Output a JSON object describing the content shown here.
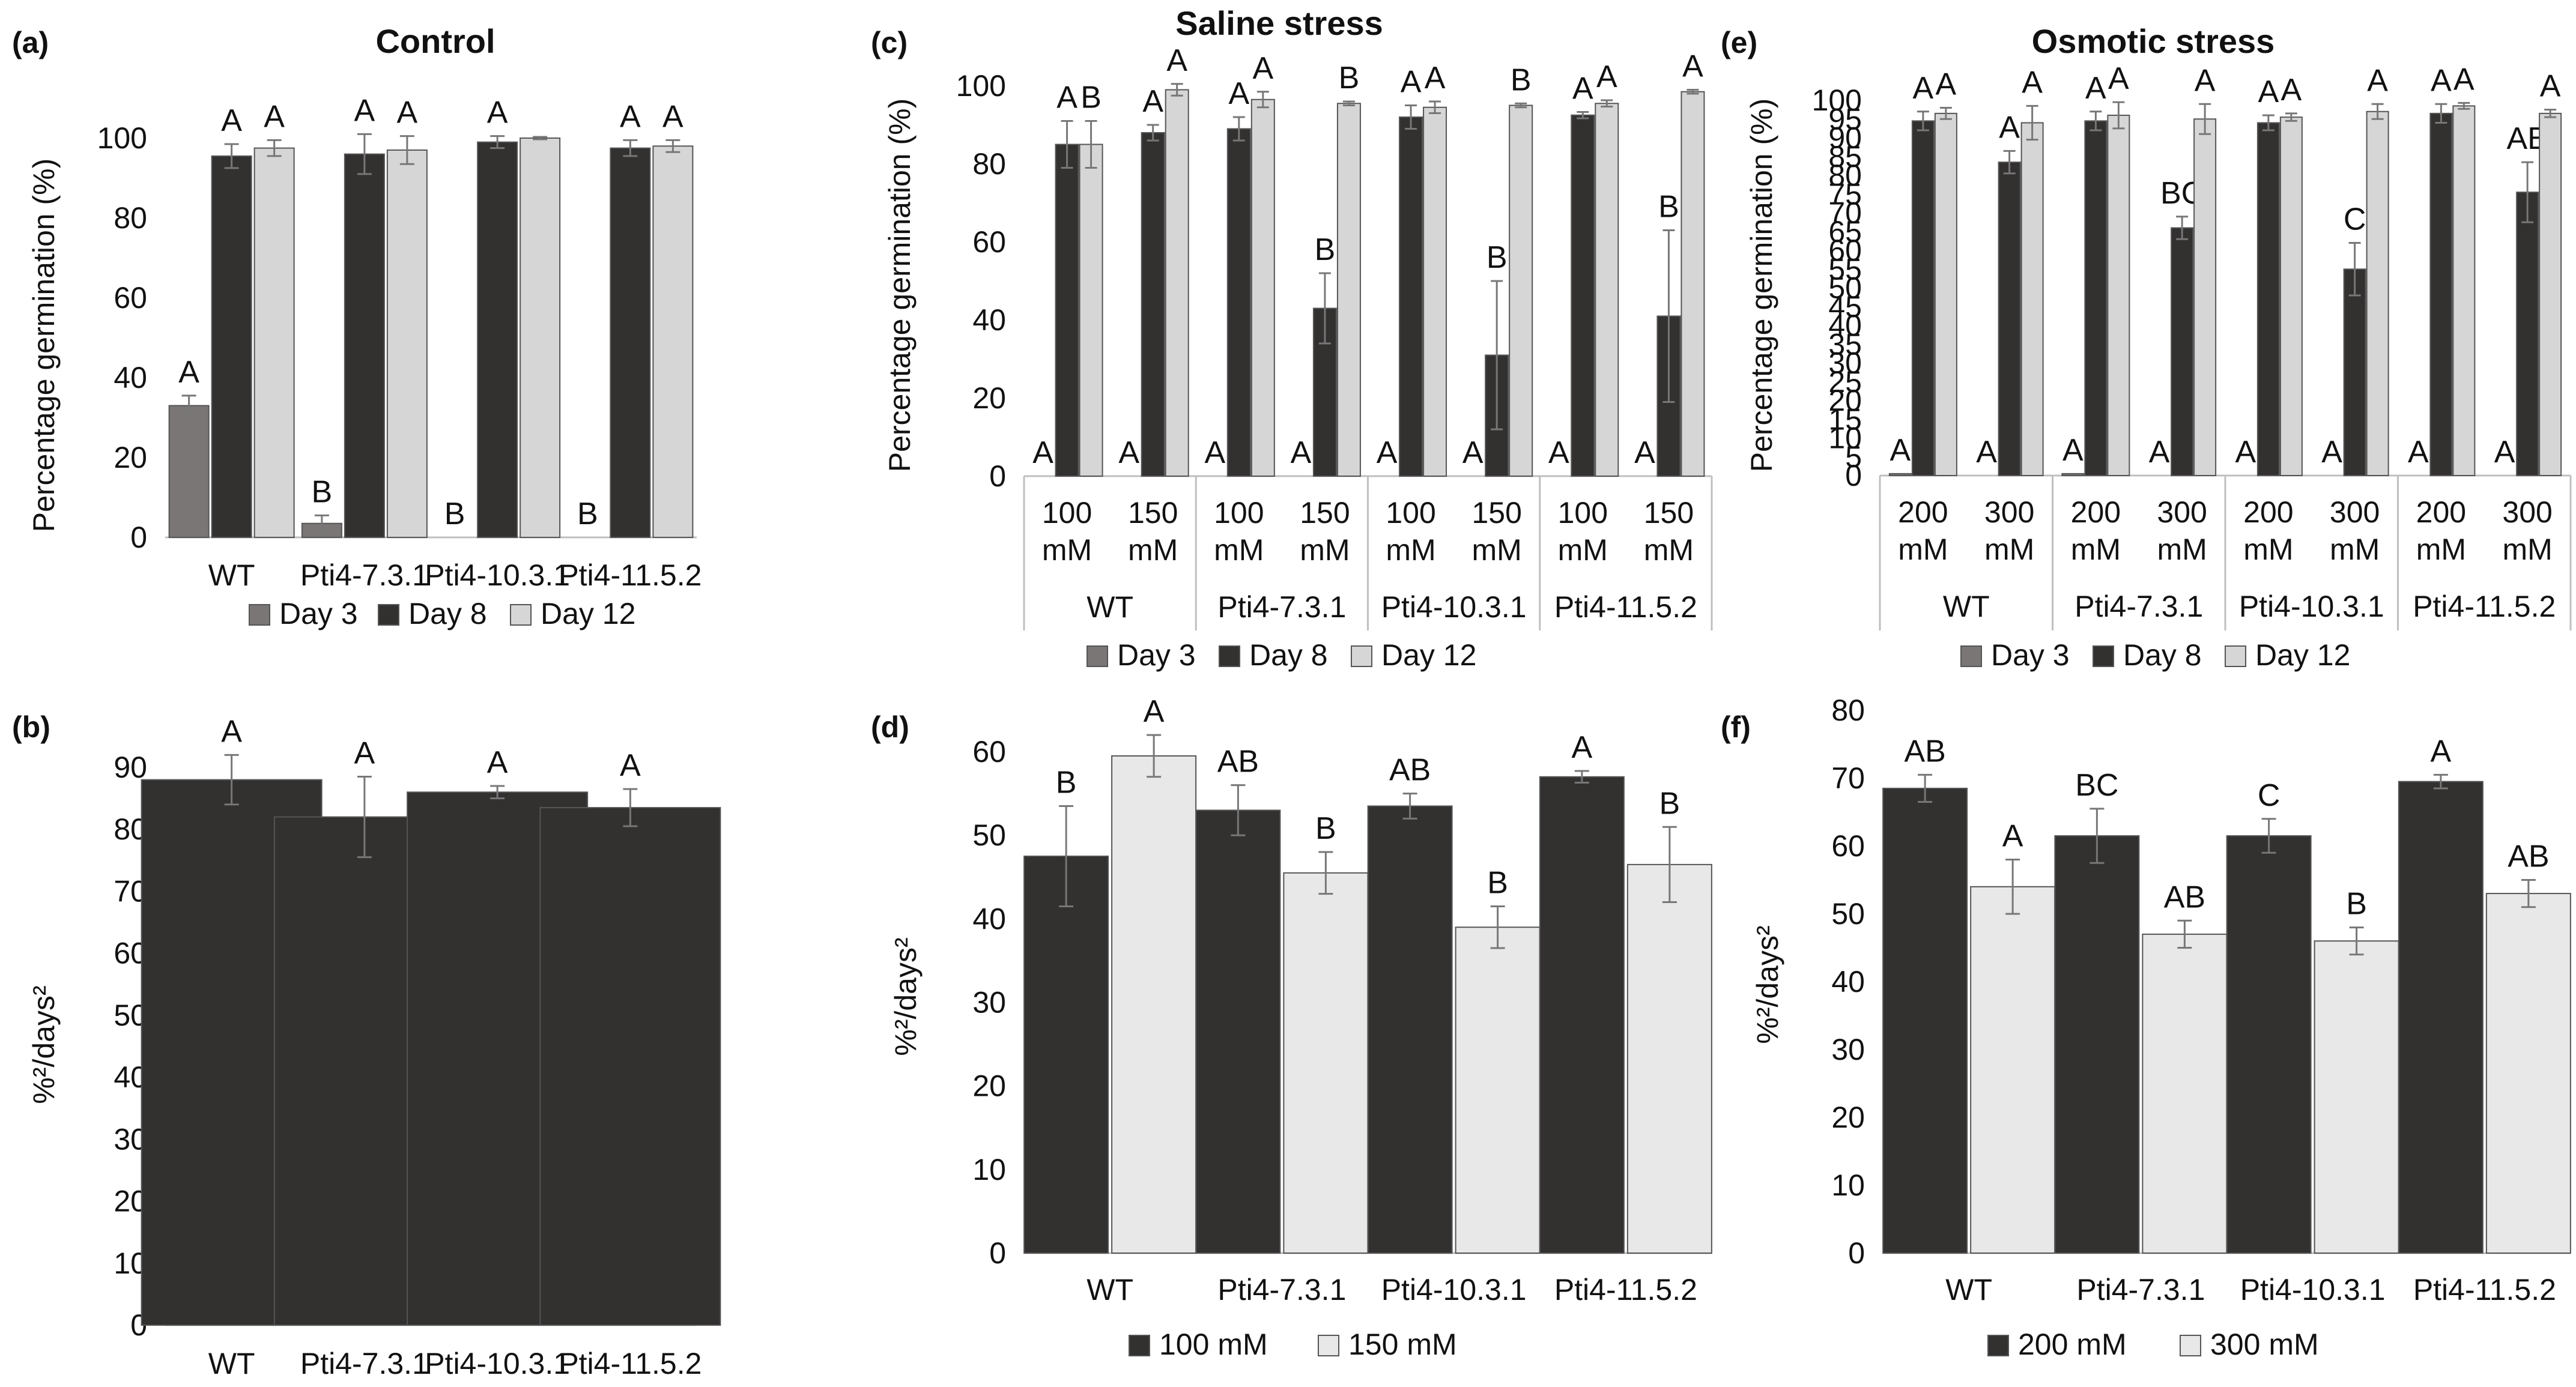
{
  "chart_data": [
    {
      "panel_label": "(a)",
      "title": "Control",
      "type": "bar",
      "ylabel": "Percentage germination (%)",
      "ylim": [
        0,
        100
      ],
      "yticks": [
        "0",
        "20",
        "40",
        "60",
        "80",
        "100"
      ],
      "categories": [
        "WT",
        "Pti4-7.3.1",
        "Pti4-10.3.1",
        "Pti4-11.5.2"
      ],
      "series": [
        {
          "name": "Day 3",
          "values": [
            33,
            3.5,
            0,
            0
          ],
          "errors": [
            2.5,
            2,
            0,
            0
          ],
          "letters": [
            "A",
            "B",
            "B",
            "B"
          ]
        },
        {
          "name": "Day 8",
          "values": [
            95.5,
            96,
            99,
            97.5
          ],
          "errors": [
            3,
            5,
            1.5,
            2
          ],
          "letters": [
            "A",
            "A",
            "A",
            "A"
          ]
        },
        {
          "name": "Day 12",
          "values": [
            97.5,
            97,
            100,
            98
          ],
          "errors": [
            2,
            3.5,
            0.3,
            1.5
          ],
          "letters": [
            "A",
            "A",
            "",
            "A"
          ]
        }
      ],
      "legend": "bottom"
    },
    {
      "panel_label": "(c)",
      "title": "Saline stress",
      "type": "bar",
      "ylabel": "Percentage germination (%)",
      "ylim": [
        0,
        100
      ],
      "yticks": [
        "0",
        "20",
        "40",
        "60",
        "80",
        "100"
      ],
      "groups": [
        "WT",
        "Pti4-7.3.1",
        "Pti4-10.3.1",
        "Pti4-11.5.2"
      ],
      "subcategories": [
        [
          "100",
          "mM"
        ],
        [
          "150",
          "mM"
        ]
      ],
      "series": [
        {
          "name": "Day 3",
          "values": [
            0,
            0,
            0,
            0,
            0,
            0,
            0,
            0
          ],
          "errors": [
            0,
            0,
            0,
            0,
            0,
            0,
            0,
            0
          ],
          "letters": [
            "A",
            "A",
            "A",
            "A",
            "A",
            "A",
            "A",
            "A"
          ]
        },
        {
          "name": "Day 8",
          "values": [
            85,
            88,
            89,
            43,
            92,
            31,
            92.5,
            41
          ],
          "errors": [
            6,
            2,
            3,
            9,
            3,
            19,
            0.8,
            22
          ],
          "letters": [
            "A",
            "A",
            "A",
            "B",
            "A",
            "B",
            "A",
            "B"
          ]
        },
        {
          "name": "Day 12",
          "values": [
            85,
            99,
            96.5,
            95.5,
            94.5,
            95,
            95.5,
            98.5
          ],
          "errors": [
            6,
            1.5,
            2,
            0.5,
            1.5,
            0.5,
            0.8,
            0.5
          ],
          "letters": [
            "B",
            "A",
            "A",
            "B",
            "A",
            "B",
            "A",
            "A"
          ]
        }
      ],
      "legend": "bottom"
    },
    {
      "panel_label": "(e)",
      "title": "Osmotic stress",
      "type": "bar",
      "ylabel": "Percentage germination (%)",
      "ylim": [
        0,
        100
      ],
      "yticks": [
        "0",
        "5",
        "10",
        "15",
        "20",
        "25",
        "30",
        "35",
        "40",
        "45",
        "50",
        "55",
        "60",
        "65",
        "70",
        "75",
        "80",
        "85",
        "90",
        "95",
        "100"
      ],
      "groups": [
        "WT",
        "Pti4-7.3.1",
        "Pti4-10.3.1",
        "Pti4-11.5.2"
      ],
      "subcategories": [
        [
          "200",
          "mM"
        ],
        [
          "300",
          "mM"
        ]
      ],
      "series": [
        {
          "name": "Day 3",
          "values": [
            0.5,
            0,
            0.5,
            0,
            0,
            0,
            0,
            0
          ],
          "errors": [
            0,
            0,
            0,
            0,
            0,
            0,
            0,
            0
          ],
          "letters": [
            "A",
            "A",
            "A",
            "A",
            "A",
            "A",
            "A",
            "A"
          ]
        },
        {
          "name": "Day 8",
          "values": [
            94.5,
            83.5,
            94.5,
            66,
            94,
            55,
            96.5,
            75.5
          ],
          "errors": [
            2.5,
            3,
            2.5,
            3,
            2,
            7,
            2.5,
            8
          ],
          "letters": [
            "A",
            "A",
            "A",
            "BC",
            "A",
            "C",
            "A",
            "AB"
          ]
        },
        {
          "name": "Day 12",
          "values": [
            96.5,
            94,
            96,
            95,
            95.5,
            97,
            98.5,
            96.5
          ],
          "errors": [
            1.5,
            4.5,
            3.5,
            4,
            1,
            2,
            0.8,
            1
          ],
          "letters": [
            "A",
            "A",
            "A",
            "A",
            "A",
            "A",
            "A",
            "A"
          ]
        }
      ],
      "legend": "bottom"
    },
    {
      "panel_label": "(b)",
      "type": "bar",
      "ylabel": "%²/days²",
      "ylim": [
        0,
        90
      ],
      "yticks": [
        "0",
        "10",
        "20",
        "30",
        "40",
        "50",
        "60",
        "70",
        "80",
        "90"
      ],
      "categories": [
        "WT",
        "Pti4-7.3.1",
        "Pti4-10.3.1",
        "Pti4-11.5.2"
      ],
      "series": [
        {
          "name": "",
          "values": [
            88,
            82,
            86,
            83.5
          ],
          "errors": [
            4,
            6.5,
            1,
            3
          ],
          "letters": [
            "A",
            "A",
            "A",
            "A"
          ]
        }
      ]
    },
    {
      "panel_label": "(d)",
      "type": "bar",
      "ylabel": "%²/days²",
      "ylim": [
        0,
        60
      ],
      "yticks": [
        "0",
        "10",
        "20",
        "30",
        "40",
        "50",
        "60"
      ],
      "categories": [
        "WT",
        "Pti4-7.3.1",
        "Pti4-10.3.1",
        "Pti4-11.5.2"
      ],
      "series": [
        {
          "name": "100 mM",
          "values": [
            47.5,
            53,
            53.5,
            57
          ],
          "errors": [
            6,
            3,
            1.5,
            0.7
          ],
          "letters": [
            "B",
            "AB",
            "AB",
            "A"
          ]
        },
        {
          "name": "150 mM",
          "values": [
            59.5,
            45.5,
            39,
            46.5
          ],
          "errors": [
            2.5,
            2.5,
            2.5,
            4.5
          ],
          "letters": [
            "A",
            "B",
            "B",
            "B"
          ]
        }
      ],
      "legend": "bottom"
    },
    {
      "panel_label": "(f)",
      "type": "bar",
      "ylabel": "%²/days²",
      "ylim": [
        0,
        80
      ],
      "yticks": [
        "0",
        "10",
        "20",
        "30",
        "40",
        "50",
        "60",
        "70",
        "80"
      ],
      "categories": [
        "WT",
        "Pti4-7.3.1",
        "Pti4-10.3.1",
        "Pti4-11.5.2"
      ],
      "series": [
        {
          "name": "200 mM",
          "values": [
            68.5,
            61.5,
            61.5,
            69.5
          ],
          "errors": [
            2,
            4,
            2.5,
            1
          ],
          "letters": [
            "AB",
            "BC",
            "C",
            "A"
          ]
        },
        {
          "name": "300 mM",
          "values": [
            54,
            47,
            46,
            53
          ],
          "errors": [
            4,
            2,
            2,
            2
          ],
          "letters": [
            "A",
            "AB",
            "B",
            "AB"
          ]
        }
      ],
      "legend": "bottom"
    }
  ],
  "colors": {
    "day3": "#7a7676",
    "day8": "#333030",
    "day12": "#d6d6d6",
    "light": "#e8e8e8",
    "bar_outline": "#555555",
    "error_bar": "#777777",
    "axis": "#bfbfbf"
  }
}
